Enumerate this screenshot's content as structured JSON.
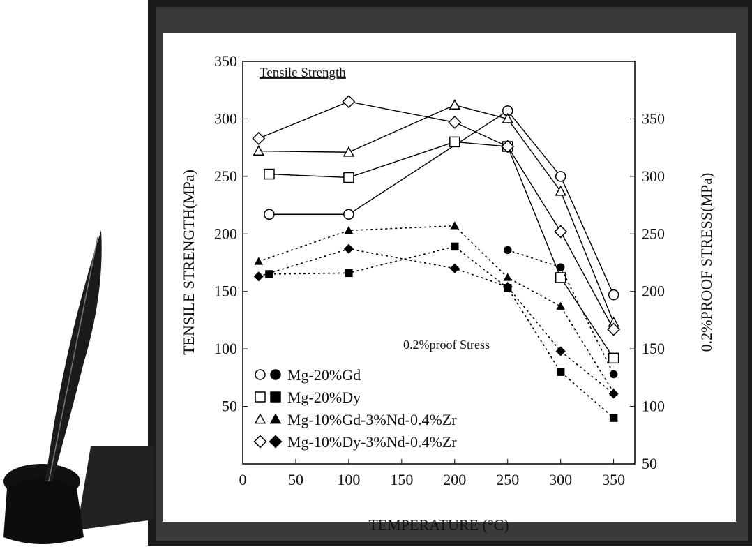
{
  "chart_data": {
    "type": "line",
    "annotations": [
      "Tensile Strength",
      "0.2%proof Stress"
    ],
    "xlabel": "TEMPERATURE (°C)",
    "ylabel": "TENSILE STRENGTH(MPa)",
    "y2label": "0.2%PROOF STRESS(MPa)",
    "xlim": [
      0,
      370
    ],
    "xticks": [
      0,
      50,
      100,
      150,
      200,
      250,
      300,
      350
    ],
    "ylim": [
      0,
      350
    ],
    "yticks": [
      50,
      100,
      150,
      200,
      250,
      300,
      350
    ],
    "y2lim": [
      50,
      400
    ],
    "y2ticks": [
      50,
      100,
      150,
      200,
      250,
      300,
      350
    ],
    "color": "#000000",
    "series": [
      {
        "name": "Mg-20%Gd",
        "marker": "circle",
        "x": [
          25,
          100,
          250,
          300,
          350
        ],
        "values": [
          217,
          217,
          307,
          250,
          147
        ]
      },
      {
        "name": "Mg-20%Dy",
        "marker": "square",
        "x": [
          25,
          100,
          200,
          250,
          300,
          350
        ],
        "values": [
          252,
          249,
          280,
          276,
          162,
          92
        ]
      },
      {
        "name": "Mg-10%Gd-3%Nd-0.4%Zr",
        "marker": "triangle",
        "x": [
          15,
          100,
          200,
          250,
          300,
          350
        ],
        "values": [
          272,
          271,
          312,
          300,
          237,
          123
        ]
      },
      {
        "name": "Mg-10%Dy-3%Nd-0.4%Zr",
        "marker": "diamond",
        "x": [
          15,
          100,
          200,
          250,
          300,
          350
        ],
        "values": [
          283,
          315,
          297,
          276,
          202,
          117
        ]
      }
    ],
    "proof_series": [
      {
        "marker": "circle",
        "axis": "y2",
        "x": [
          250,
          300,
          350
        ],
        "values": [
          236,
          221,
          128
        ]
      },
      {
        "marker": "square",
        "axis": "y2",
        "x": [
          25,
          100,
          200,
          250,
          300,
          350
        ],
        "values": [
          215,
          216,
          239,
          203,
          130,
          90
        ]
      },
      {
        "marker": "triangle",
        "axis": "y2",
        "x": [
          15,
          100,
          200,
          250,
          300,
          350
        ],
        "values": [
          226,
          253,
          257,
          212,
          187,
          112
        ]
      },
      {
        "marker": "diamond",
        "axis": "y2",
        "x": [
          15,
          100,
          200,
          250,
          300,
          350
        ],
        "values": [
          213,
          237,
          220,
          204,
          148,
          111
        ]
      }
    ]
  }
}
